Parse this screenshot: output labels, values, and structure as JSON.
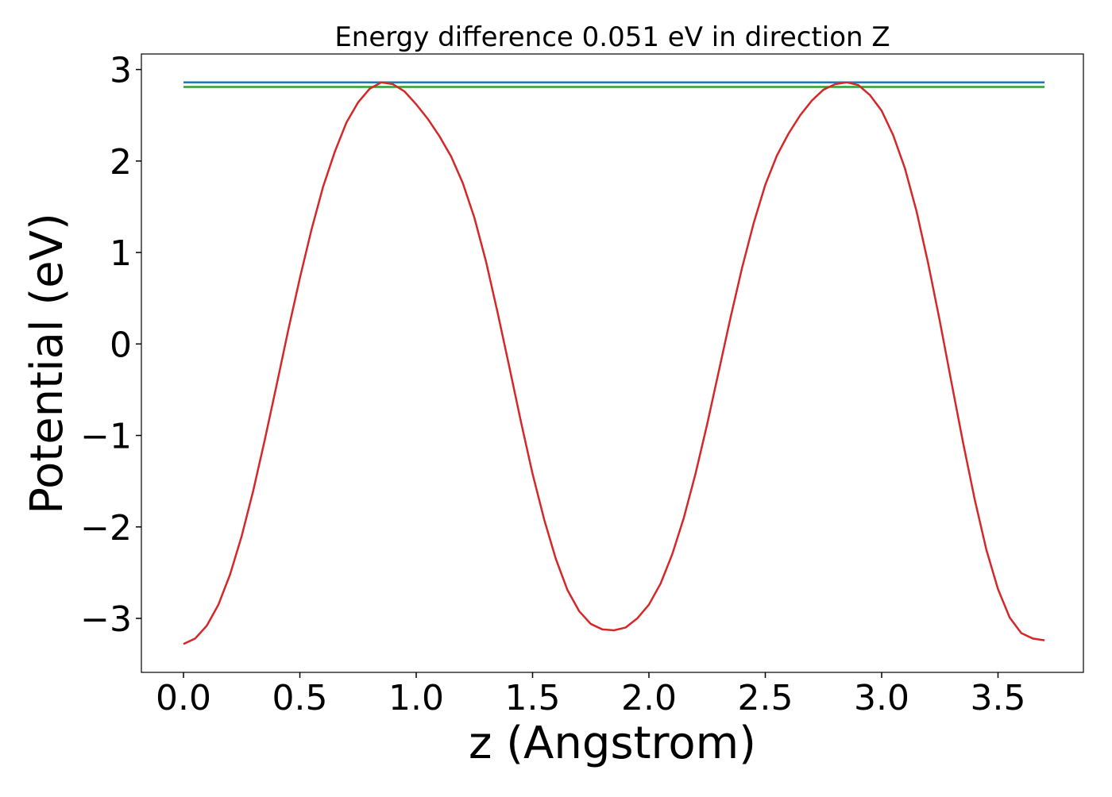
{
  "chart_data": {
    "type": "line",
    "title": "Energy difference 0.051 eV in direction Z",
    "x_label": "z (Angstrom)",
    "y_label": "Potential (eV)",
    "xlim": [
      -0.181,
      3.867
    ],
    "ylim": [
      -3.59,
      3.17
    ],
    "xticks": [
      {
        "value": 0,
        "label": "0.0"
      },
      0.5,
      {
        "value": 1,
        "label": "1.0"
      },
      1.5,
      {
        "value": 2,
        "label": "2.0"
      },
      2.5,
      {
        "value": 3,
        "label": "3.0"
      },
      3.5
    ],
    "yticks": [
      {
        "value": -3,
        "label": "−3"
      },
      {
        "value": -2,
        "label": "−2"
      },
      {
        "value": -1,
        "label": "−1"
      },
      0,
      1,
      2,
      3
    ],
    "series": [
      {
        "color": "#1f77b4",
        "x": [
          0,
          3.7
        ],
        "values": [
          2.86,
          2.86
        ]
      },
      {
        "color": "#2ca02c",
        "x": [
          0,
          3.7
        ],
        "values": [
          2.81,
          2.81
        ]
      },
      {
        "color": "#d62728",
        "x": [
          0,
          0.05,
          0.1,
          0.15,
          0.2,
          0.25,
          0.3,
          0.35,
          0.4,
          0.45,
          0.5,
          0.55,
          0.6,
          0.65,
          0.7,
          0.75,
          0.8,
          0.85,
          0.9,
          0.95,
          1.0,
          1.05,
          1.1,
          1.15,
          1.2,
          1.25,
          1.3,
          1.35,
          1.4,
          1.45,
          1.5,
          1.55,
          1.6,
          1.65,
          1.7,
          1.75,
          1.8,
          1.85,
          1.9,
          1.95,
          2.0,
          2.05,
          2.1,
          2.15,
          2.2,
          2.25,
          2.3,
          2.35,
          2.4,
          2.45,
          2.5,
          2.55,
          2.6,
          2.65,
          2.7,
          2.75,
          2.8,
          2.85,
          2.9,
          2.95,
          3.0,
          3.05,
          3.1,
          3.15,
          3.2,
          3.25,
          3.3,
          3.35,
          3.4,
          3.45,
          3.5,
          3.55,
          3.6,
          3.65,
          3.7
        ],
        "values": [
          -3.28,
          -3.22,
          -3.08,
          -2.85,
          -2.52,
          -2.1,
          -1.6,
          -1.04,
          -0.45,
          0.15,
          0.72,
          1.25,
          1.72,
          2.1,
          2.42,
          2.64,
          2.79,
          2.86,
          2.84,
          2.76,
          2.62,
          2.46,
          2.27,
          2.05,
          1.76,
          1.38,
          0.9,
          0.34,
          -0.25,
          -0.85,
          -1.42,
          -1.92,
          -2.35,
          -2.69,
          -2.92,
          -3.06,
          -3.12,
          -3.13,
          -3.1,
          -3.0,
          -2.85,
          -2.62,
          -2.3,
          -1.9,
          -1.42,
          -0.88,
          -0.3,
          0.28,
          0.83,
          1.32,
          1.74,
          2.06,
          2.3,
          2.5,
          2.66,
          2.78,
          2.84,
          2.86,
          2.83,
          2.72,
          2.55,
          2.28,
          1.92,
          1.45,
          0.88,
          0.25,
          -0.42,
          -1.08,
          -1.7,
          -2.25,
          -2.68,
          -2.99,
          -3.16,
          -3.22,
          -3.24
        ]
      }
    ]
  }
}
